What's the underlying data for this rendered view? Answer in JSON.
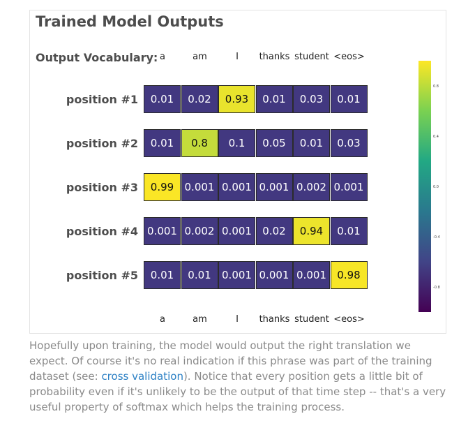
{
  "figure": {
    "title": "Trained Model Outputs",
    "vocab_label": "Output Vocabulary:",
    "vocab": [
      "a",
      "am",
      "I",
      "thanks",
      "student",
      "<eos>"
    ],
    "positions": [
      "position #1",
      "position #2",
      "position #3",
      "position #4",
      "position #5"
    ],
    "values": [
      [
        "0.01",
        "0.02",
        "0.93",
        "0.01",
        "0.03",
        "0.01"
      ],
      [
        "0.01",
        "0.8",
        "0.1",
        "0.05",
        "0.01",
        "0.03"
      ],
      [
        "0.99",
        "0.001",
        "0.001",
        "0.001",
        "0.002",
        "0.001"
      ],
      [
        "0.001",
        "0.002",
        "0.001",
        "0.02",
        "0.94",
        "0.01"
      ],
      [
        "0.01",
        "0.01",
        "0.001",
        "0.001",
        "0.001",
        "0.98"
      ]
    ],
    "colorbar_ticks": [
      "0.8",
      "0.4",
      "0.0",
      "-0.4",
      "-0.8"
    ]
  },
  "caption": {
    "part1": "Hopefully upon training, the model would output the right translation we expect. Of course it's no real indication if this phrase was part of the training dataset (see: ",
    "link_text": "cross validation",
    "part2": "). Notice that every position gets a little bit of probability even if it's unlikely to be the output of that time step -- that's a very useful property of softmax which helps the training process."
  }
}
